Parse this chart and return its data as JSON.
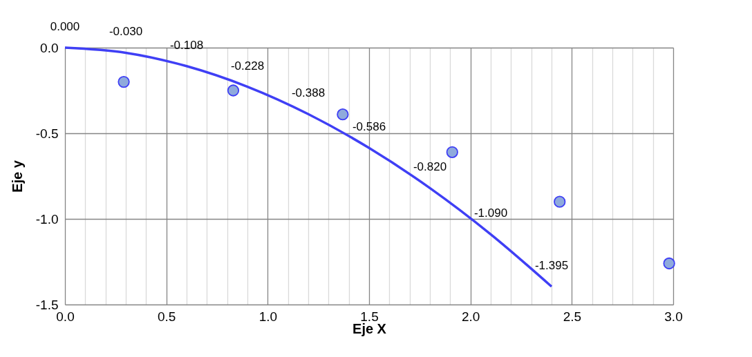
{
  "chart_data": {
    "type": "line",
    "xlabel": "Eje X",
    "ylabel": "Eje y",
    "xlim": [
      0,
      3
    ],
    "ylim": [
      -1.5,
      0
    ],
    "xticks": [
      {
        "value": 0,
        "label": "0.0"
      },
      {
        "value": 0.1,
        "label": null
      },
      {
        "value": 0.2,
        "label": null
      },
      {
        "value": 0.3,
        "label": null
      },
      {
        "value": 0.4,
        "label": null
      },
      {
        "value": 0.5,
        "label": "0.5"
      },
      {
        "value": 0.6,
        "label": null
      },
      {
        "value": 0.7,
        "label": null
      },
      {
        "value": 0.8,
        "label": null
      },
      {
        "value": 0.9,
        "label": null
      },
      {
        "value": 1.0,
        "label": "1.0"
      },
      {
        "value": 1.1,
        "label": null
      },
      {
        "value": 1.2,
        "label": null
      },
      {
        "value": 1.3,
        "label": null
      },
      {
        "value": 1.4,
        "label": null
      },
      {
        "value": 1.5,
        "label": "1.5"
      },
      {
        "value": 1.6,
        "label": null
      },
      {
        "value": 1.7,
        "label": null
      },
      {
        "value": 1.8,
        "label": null
      },
      {
        "value": 1.9,
        "label": null
      },
      {
        "value": 2.0,
        "label": "2.0"
      },
      {
        "value": 2.1,
        "label": null
      },
      {
        "value": 2.2,
        "label": null
      },
      {
        "value": 2.3,
        "label": null
      },
      {
        "value": 2.4,
        "label": null
      },
      {
        "value": 2.5,
        "label": "2.5"
      },
      {
        "value": 2.6,
        "label": null
      },
      {
        "value": 2.7,
        "label": null
      },
      {
        "value": 2.8,
        "label": null
      },
      {
        "value": 2.9,
        "label": null
      },
      {
        "value": 3.0,
        "label": "3.0"
      }
    ],
    "yticks": [
      {
        "value": 0,
        "label": "0.0"
      },
      -0.5,
      {
        "value": -1,
        "label": "-1.0"
      },
      -1.5
    ],
    "grid": true,
    "series": [
      {
        "type": "line",
        "color": "#3f3ff5",
        "marker": "none",
        "line_style": "solid",
        "x": [
          0,
          0.3,
          0.6,
          0.9,
          1.2,
          1.5,
          1.8,
          2.1,
          2.4
        ],
        "values": [
          0.0,
          -0.03,
          -0.108,
          -0.228,
          -0.388,
          -0.586,
          -0.82,
          -1.09,
          -1.395
        ],
        "value_labels": [
          "0.000",
          "-0.030",
          "-0.108",
          "-0.228",
          "-0.388",
          "-0.586",
          "-0.820",
          "-1.090",
          "-1.395"
        ]
      },
      {
        "type": "scatter",
        "color": "#8faadc",
        "marker": "circle",
        "x": [
          0.29,
          0.83,
          1.37,
          1.91,
          2.44,
          2.98
        ],
        "values": [
          -0.2,
          -0.25,
          -0.39,
          -0.61,
          -0.9,
          -1.26
        ]
      }
    ]
  }
}
